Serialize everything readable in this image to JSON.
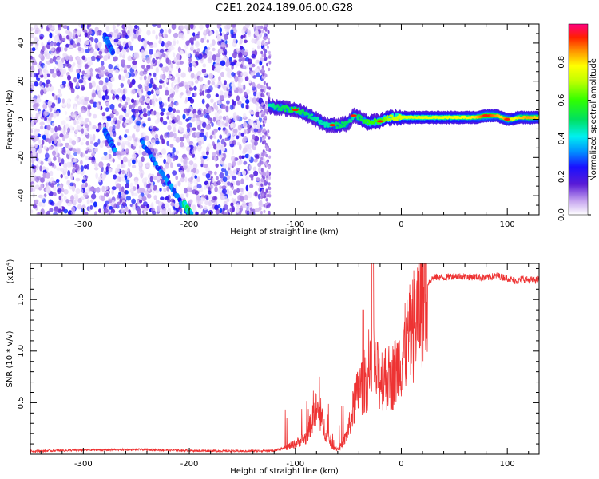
{
  "title": "C2E1.2024.189.06.00.G28",
  "chart_data": [
    {
      "type": "heatmap",
      "xlabel": "Height of straight line (km)",
      "ylabel": "Frequency (Hz)",
      "xlim": [
        -350,
        130
      ],
      "ylim": [
        -50,
        50
      ],
      "x_ticks": [
        -300,
        -200,
        -100,
        0,
        100
      ],
      "x_tick_labels": [
        "-300",
        "-200",
        "-100",
        "0",
        "100"
      ],
      "y_ticks": [
        -40,
        -20,
        0,
        20,
        40
      ],
      "y_tick_labels": [
        "-40",
        "-20",
        "0",
        "20",
        "40"
      ],
      "colorbar": {
        "label": "Normalized spectral amplitude",
        "range": [
          0,
          1
        ],
        "ticks": [
          0.0,
          0.2,
          0.4,
          0.6,
          0.8
        ],
        "tick_labels": [
          "0.0",
          "0.2",
          "0.4",
          "0.6",
          "0.8"
        ]
      },
      "ridge": {
        "x": [
          -125,
          -115,
          -100,
          -90,
          -80,
          -70,
          -60,
          -50,
          -45,
          -40,
          -35,
          -30,
          -25,
          -20,
          -15,
          -10,
          -5,
          0,
          10,
          20,
          30,
          40,
          50,
          60,
          70,
          80,
          90,
          95,
          100,
          105,
          110,
          120,
          130
        ],
        "y": [
          7,
          6,
          5,
          3,
          0,
          -3,
          -3,
          -2,
          2,
          1,
          -1,
          -2,
          -1,
          -1,
          0,
          1,
          1,
          1,
          1,
          1,
          1,
          1,
          1,
          1,
          1,
          2,
          2,
          1,
          0,
          0,
          1,
          1,
          1
        ],
        "amplitude": [
          0.45,
          0.5,
          0.55,
          0.5,
          0.45,
          0.45,
          0.5,
          0.5,
          0.45,
          0.5,
          0.55,
          0.6,
          0.6,
          0.6,
          0.65,
          0.7,
          0.72,
          0.73,
          0.74,
          0.75,
          0.75,
          0.76,
          0.77,
          0.78,
          0.8,
          0.95,
          0.85,
          0.8,
          0.9,
          0.75,
          0.8,
          0.85,
          0.8
        ]
      },
      "streaks": [
        {
          "x": [
            -280,
            -272
          ],
          "y": [
            44,
            35
          ],
          "amplitude": 0.3
        },
        {
          "x": [
            -280,
            -270
          ],
          "y": [
            -6,
            -16
          ],
          "amplitude": 0.3
        },
        {
          "x": [
            -245,
            -200
          ],
          "y": [
            -12,
            -50
          ],
          "amplitude": 0.3
        },
        {
          "x": [
            -205,
            -198
          ],
          "y": [
            -44,
            -50
          ],
          "amplitude": 0.45
        }
      ]
    },
    {
      "type": "line",
      "xlabel": "Height of straight line (km)",
      "ylabel": "SNR (10 * v/v)",
      "ylabel_scale": "(x10",
      "ylabel_scale_exp": "4",
      "ylabel_scale_close": ")",
      "xlim": [
        -350,
        130
      ],
      "ylim": [
        0,
        18500
      ],
      "x_ticks": [
        -300,
        -200,
        -100,
        0,
        100
      ],
      "x_tick_labels": [
        "-300",
        "-200",
        "-100",
        "0",
        "100"
      ],
      "y_ticks": [
        5000,
        10000,
        15000
      ],
      "y_tick_labels": [
        "0.5",
        "1.0",
        "1.5"
      ],
      "series": [
        {
          "color": "#ee3333",
          "x": [
            -350,
            -300,
            -250,
            -200,
            -150,
            -120,
            -110,
            -100,
            -90,
            -85,
            -80,
            -75,
            -70,
            -65,
            -60,
            -55,
            -50,
            -45,
            -40,
            -35,
            -30,
            -27,
            -25,
            -20,
            -15,
            -10,
            -5,
            0,
            5,
            10,
            15,
            20,
            25,
            30,
            35,
            40,
            50,
            60,
            70,
            80,
            90,
            100,
            105,
            110,
            115,
            120,
            130
          ],
          "y": [
            300,
            400,
            450,
            350,
            300,
            350,
            600,
            1000,
            1600,
            3000,
            4300,
            3200,
            1800,
            800,
            500,
            1000,
            2400,
            4600,
            6200,
            7100,
            7500,
            8300,
            7800,
            7400,
            7600,
            7300,
            8100,
            9300,
            10500,
            12000,
            13600,
            15200,
            16600,
            17100,
            17200,
            17100,
            17300,
            17200,
            17200,
            17100,
            17300,
            17100,
            16900,
            16800,
            17000,
            16900,
            16900
          ]
        }
      ]
    }
  ]
}
